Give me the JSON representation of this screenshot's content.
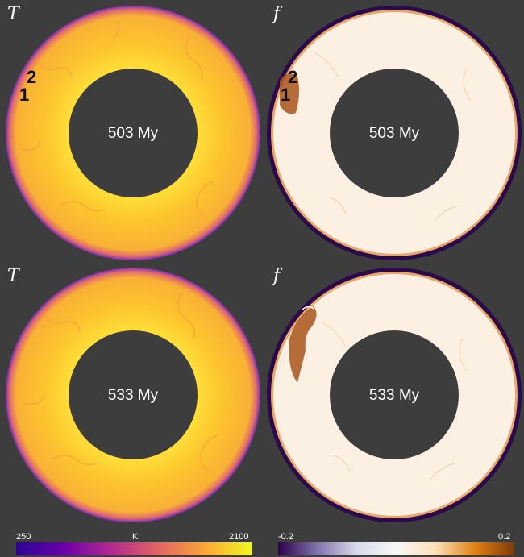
{
  "panels": [
    {
      "variable": "T",
      "time": "503 My",
      "markers": [
        "2",
        "1"
      ]
    },
    {
      "variable": "f",
      "time": "503 My",
      "markers": [
        "2",
        "1"
      ]
    },
    {
      "variable": "T",
      "time": "533 My"
    },
    {
      "variable": "f",
      "time": "533 My"
    }
  ],
  "colorbars": {
    "temperature": {
      "min": "250",
      "unit": "K",
      "max": "2100",
      "colors": [
        "#2c0594",
        "#6a00a8",
        "#b12a90",
        "#e16462",
        "#fca636",
        "#f0f921"
      ]
    },
    "composition": {
      "min": "-0.2",
      "max": "0.2",
      "colors": [
        "#2d004b",
        "#8073ac",
        "#d8daeb",
        "#f7f7f7",
        "#fee0b6",
        "#e08214",
        "#7f3b08"
      ]
    }
  },
  "colors": {
    "background": "#3d3d3d",
    "core": "#3d3d3d",
    "temp_rim": "#7b2fb5",
    "comp_rim": "#2a0a4a",
    "comp_fill": "#fbf0e2"
  }
}
